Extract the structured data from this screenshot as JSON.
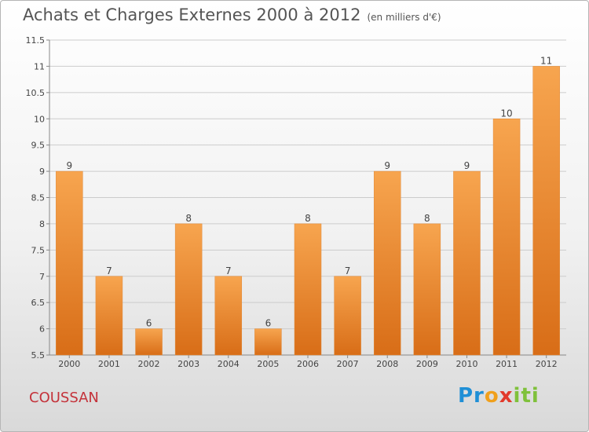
{
  "header": {
    "title": "Achats et Charges Externes 2000 à 2012",
    "subtitle": "(en milliers d'€)"
  },
  "footer": {
    "place": "COUSSAN",
    "logo": {
      "p": "Pr",
      "o": "o",
      "x": "x",
      "i": "iti"
    }
  },
  "colors": {
    "bar_top": "#f7a54f",
    "bar_bottom": "#d86d17",
    "grid": "#cccccc",
    "axis_text": "#444444"
  },
  "chart_data": {
    "type": "bar",
    "categories": [
      "2000",
      "2001",
      "2002",
      "2003",
      "2004",
      "2005",
      "2006",
      "2007",
      "2008",
      "2009",
      "2010",
      "2011",
      "2012"
    ],
    "values": [
      9,
      7,
      6,
      8,
      7,
      6,
      8,
      7,
      9,
      8,
      9,
      10,
      11
    ],
    "data_labels": [
      "9",
      "7",
      "6",
      "8",
      "7",
      "6",
      "8",
      "7",
      "9",
      "8",
      "9",
      "10",
      "11"
    ],
    "ylim": [
      5.5,
      11.5
    ],
    "yticks": [
      5.5,
      6,
      6.5,
      7,
      7.5,
      8,
      8.5,
      9,
      9.5,
      10,
      10.5,
      11,
      11.5
    ],
    "ytick_labels": [
      "5.5",
      "6",
      "6.5",
      "7",
      "7.5",
      "8",
      "8.5",
      "9",
      "9.5",
      "10",
      "10.5",
      "11",
      "11.5"
    ],
    "grid": true,
    "legend": "none"
  }
}
